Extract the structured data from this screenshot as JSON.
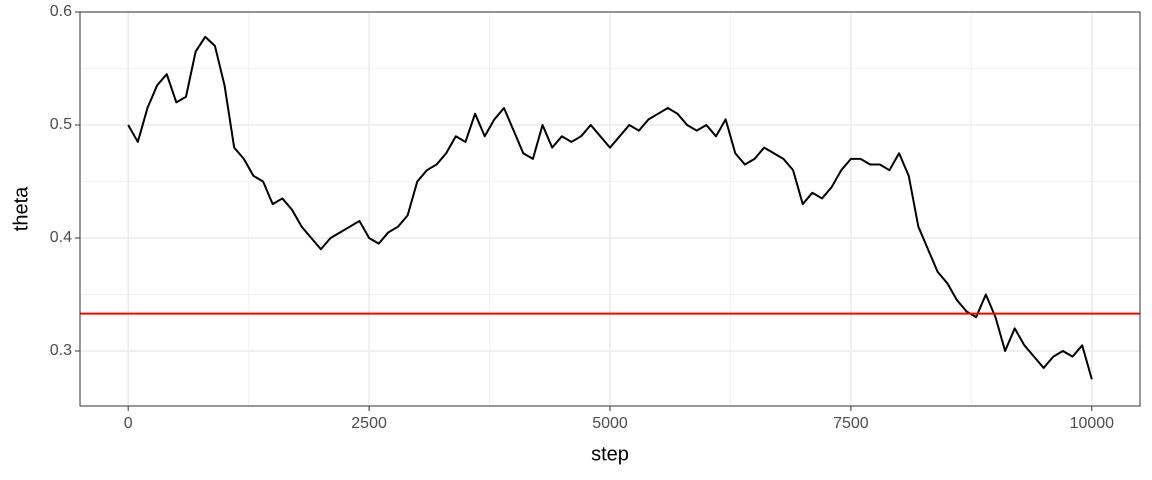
{
  "chart_data": {
    "type": "line",
    "x_label": "step",
    "y_label": "theta",
    "x": [
      0,
      100,
      200,
      300,
      400,
      500,
      600,
      700,
      800,
      900,
      1000,
      1100,
      1200,
      1300,
      1400,
      1500,
      1600,
      1700,
      1800,
      1900,
      2000,
      2100,
      2200,
      2300,
      2400,
      2500,
      2600,
      2700,
      2800,
      2900,
      3000,
      3100,
      3200,
      3300,
      3400,
      3500,
      3600,
      3700,
      3800,
      3900,
      4000,
      4100,
      4200,
      4300,
      4400,
      4500,
      4600,
      4700,
      4800,
      4900,
      5000,
      5100,
      5200,
      5300,
      5400,
      5500,
      5600,
      5700,
      5800,
      5900,
      6000,
      6100,
      6200,
      6300,
      6400,
      6500,
      6600,
      6700,
      6800,
      6900,
      7000,
      7100,
      7200,
      7300,
      7400,
      7500,
      7600,
      7700,
      7800,
      7900,
      8000,
      8100,
      8200,
      8300,
      8400,
      8500,
      8600,
      8700,
      8800,
      8900,
      9000,
      9100,
      9200,
      9300,
      9400,
      9500,
      9600,
      9700,
      9800,
      9900,
      10000
    ],
    "series": [
      {
        "name": "theta",
        "color": "#000000",
        "values": [
          0.5,
          0.485,
          0.515,
          0.535,
          0.545,
          0.52,
          0.525,
          0.565,
          0.578,
          0.57,
          0.535,
          0.48,
          0.47,
          0.455,
          0.45,
          0.43,
          0.435,
          0.425,
          0.41,
          0.4,
          0.39,
          0.4,
          0.405,
          0.41,
          0.415,
          0.4,
          0.395,
          0.405,
          0.41,
          0.42,
          0.45,
          0.46,
          0.465,
          0.475,
          0.49,
          0.485,
          0.51,
          0.49,
          0.505,
          0.515,
          0.495,
          0.475,
          0.47,
          0.5,
          0.48,
          0.49,
          0.485,
          0.49,
          0.5,
          0.49,
          0.48,
          0.49,
          0.5,
          0.495,
          0.505,
          0.51,
          0.515,
          0.51,
          0.5,
          0.495,
          0.5,
          0.49,
          0.505,
          0.475,
          0.465,
          0.47,
          0.48,
          0.475,
          0.47,
          0.46,
          0.43,
          0.44,
          0.435,
          0.445,
          0.46,
          0.47,
          0.47,
          0.465,
          0.465,
          0.46,
          0.475,
          0.455,
          0.41,
          0.39,
          0.37,
          0.36,
          0.345,
          0.335,
          0.33,
          0.35,
          0.33,
          0.3,
          0.32,
          0.305,
          0.295,
          0.285,
          0.295,
          0.3,
          0.295,
          0.305,
          0.275
        ]
      }
    ],
    "hline": {
      "value": 0.333,
      "color": "#ff0000"
    },
    "xlim": [
      -500,
      10500
    ],
    "ylim": [
      0.2513,
      0.6
    ],
    "xticks": [
      0,
      2500,
      5000,
      7500,
      10000
    ],
    "yticks": [
      0.3,
      0.4,
      0.5,
      0.6
    ],
    "xminor": [
      1250,
      3750,
      6250,
      8750
    ],
    "yminor": [
      0.35,
      0.45,
      0.55
    ],
    "grid": true
  }
}
